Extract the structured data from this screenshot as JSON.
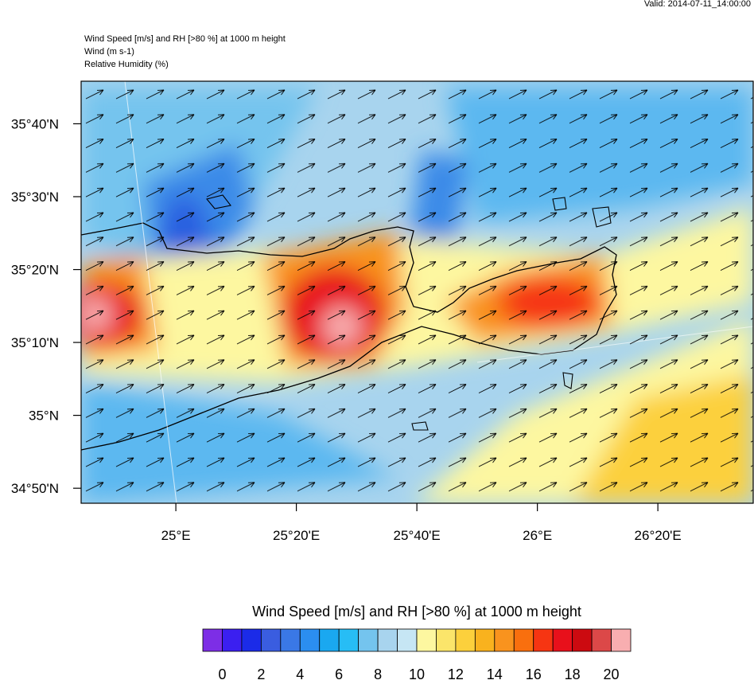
{
  "valid": "Valid: 2014-07-11_14:00:00",
  "header": {
    "lines": [
      "Wind Speed [m/s] and RH [>80 %] at 1000 m height",
      "Wind   (m s-1)",
      "Relative Humidity   (%)"
    ]
  },
  "map": {
    "lat_range": [
      34.799,
      35.764
    ],
    "lon_range": [
      24.738,
      26.597
    ],
    "lat_ticks": [
      {
        "value": 35.6667,
        "label": "35°40'N"
      },
      {
        "value": 35.5,
        "label": "35°30'N"
      },
      {
        "value": 35.3333,
        "label": "35°20'N"
      },
      {
        "value": 35.1667,
        "label": "35°10'N"
      },
      {
        "value": 35,
        "label": "35°N"
      },
      {
        "value": 34.8333,
        "label": "34°50'N"
      }
    ],
    "lon_ticks": [
      {
        "value": 25,
        "label": "25°E"
      },
      {
        "value": 25.3333,
        "label": "25°20'E"
      },
      {
        "value": 25.6667,
        "label": "25°40'E"
      },
      {
        "value": 26,
        "label": "26°E"
      },
      {
        "value": 26.3333,
        "label": "26°20'E"
      }
    ]
  },
  "colorbar": {
    "title": "Wind Speed [m/s] and RH [>80 %] at 1000 m height",
    "colors": [
      "#7d2ee6",
      "#3b1ff0",
      "#1b2be8",
      "#3a5de0",
      "#3a78e6",
      "#2b8ef0",
      "#1aa8f0",
      "#27bdf5",
      "#74c4ee",
      "#a8d4ee",
      "#c6e6f4",
      "#fdf7a0",
      "#fbe56a",
      "#fcd03c",
      "#f9b21e",
      "#f9931e",
      "#f96f0e",
      "#f63512",
      "#e8101b",
      "#cc0a10",
      "#dc4848",
      "#f8aeb0"
    ],
    "levels": [
      0,
      1,
      2,
      3,
      4,
      5,
      6,
      7,
      8,
      9,
      10,
      11,
      12,
      13,
      14,
      15,
      16,
      17,
      18,
      19,
      20
    ],
    "ticks": [
      0,
      2,
      4,
      6,
      8,
      10,
      12,
      14,
      16,
      18,
      20
    ]
  }
}
